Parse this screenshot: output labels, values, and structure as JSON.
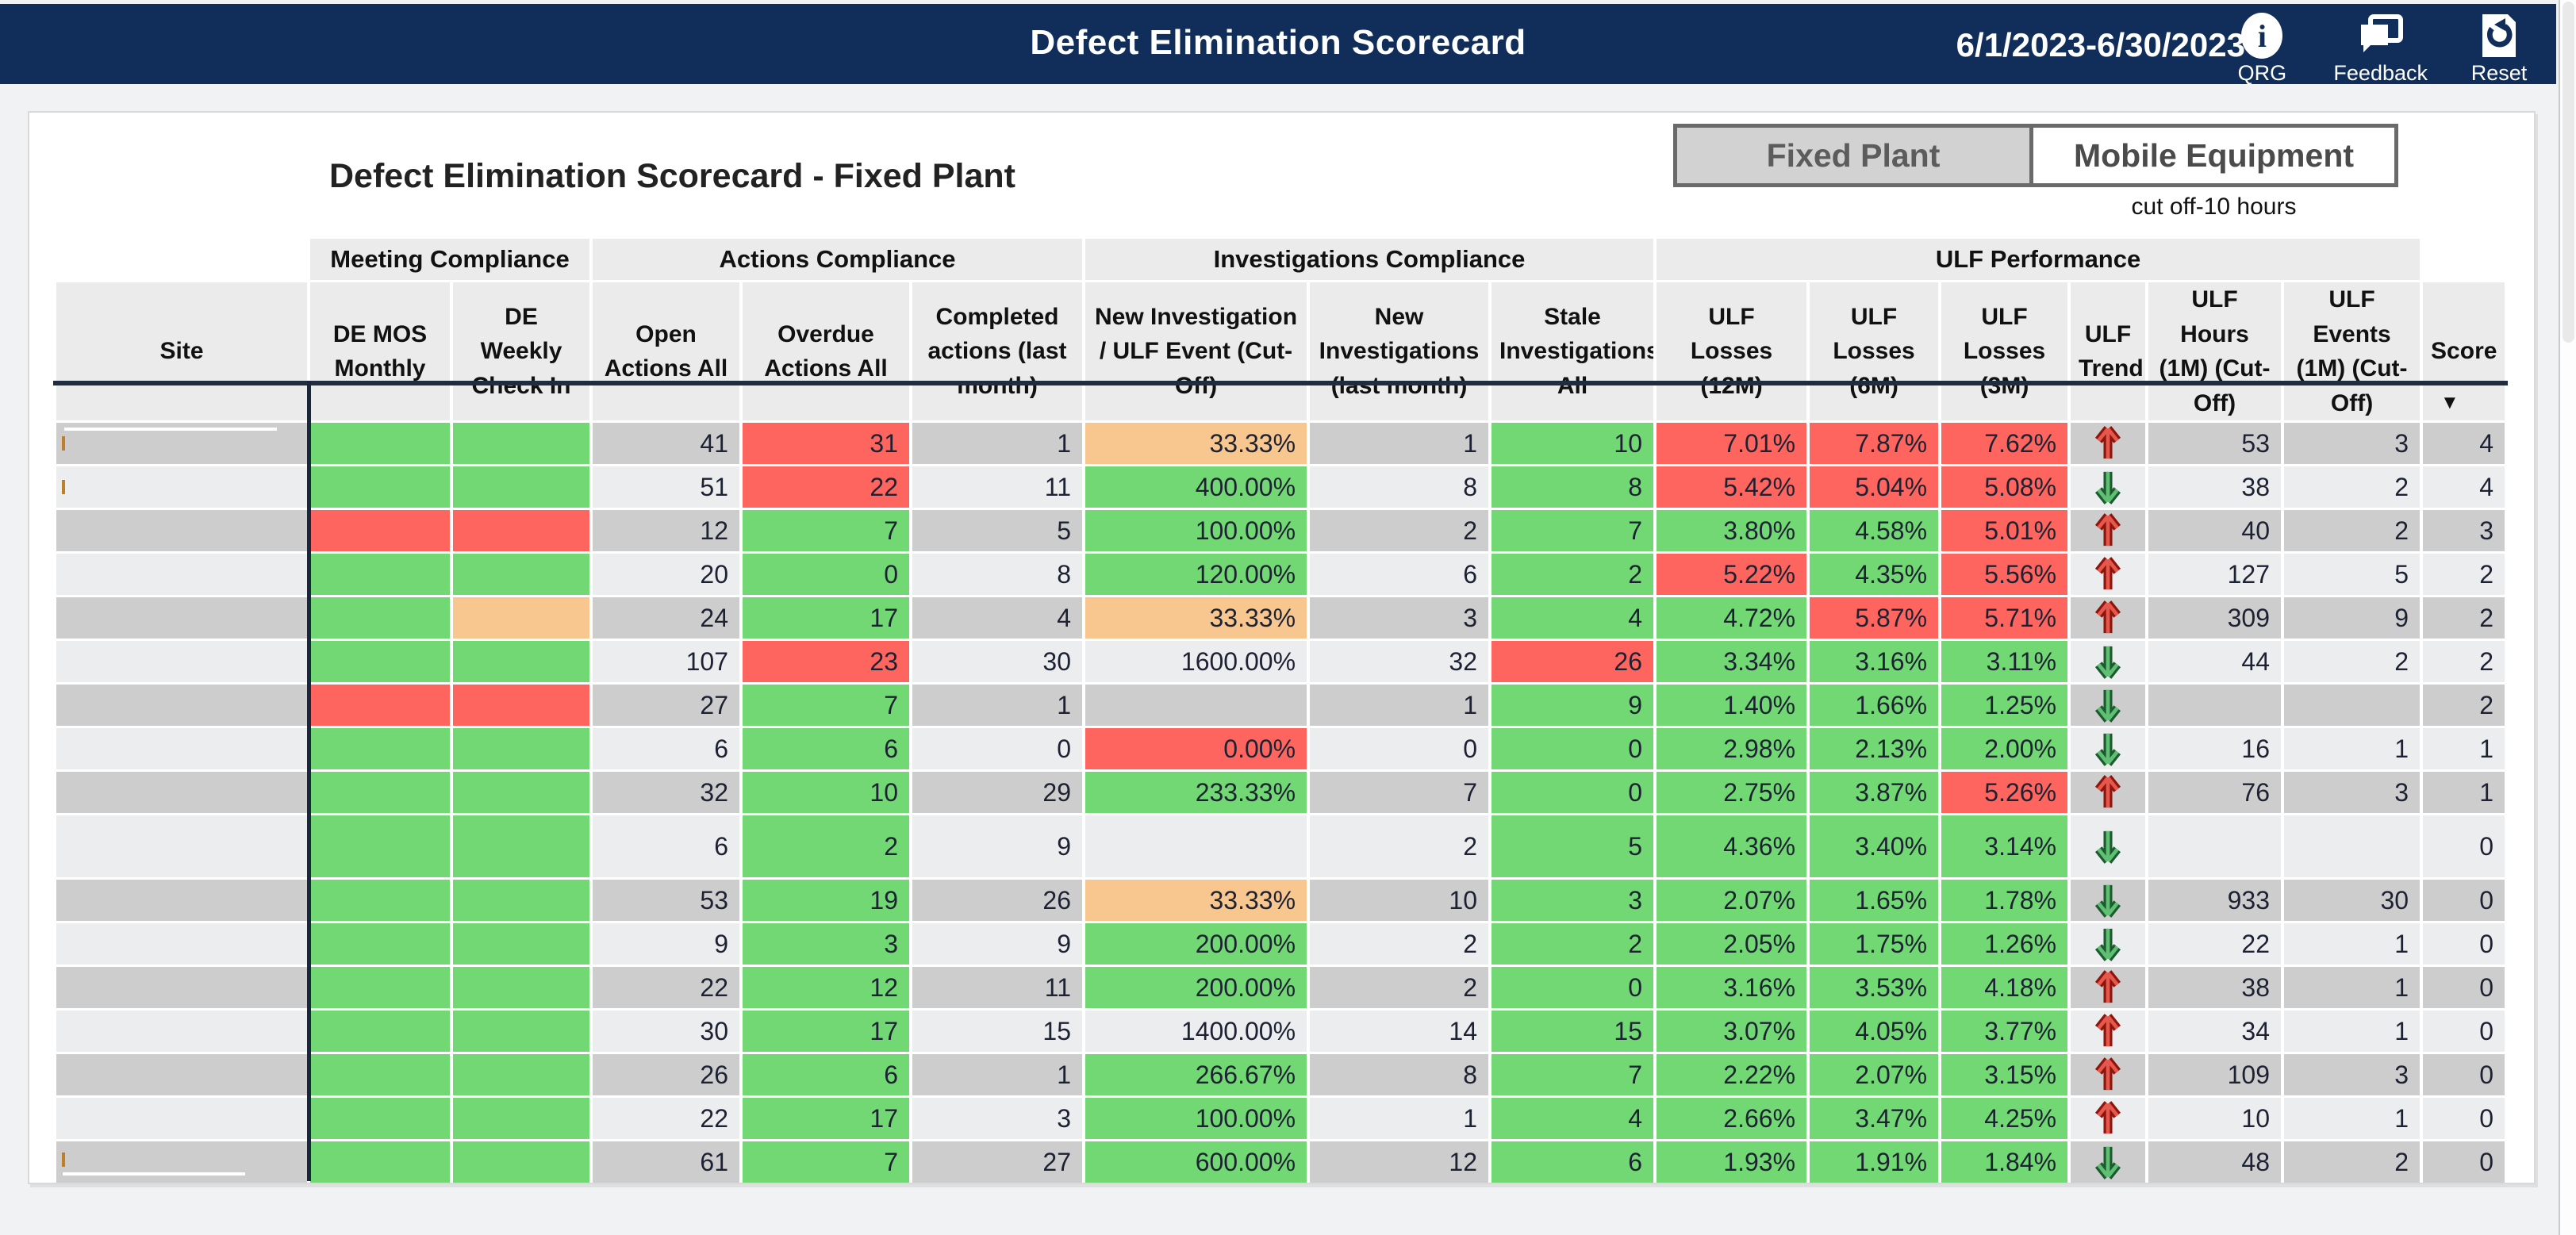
{
  "topbar": {
    "title": "Defect Elimination Scorecard",
    "date_range": "6/1/2023-6/30/2023",
    "buttons": [
      {
        "label": "QRG",
        "icon": "info-icon",
        "glyph": "i"
      },
      {
        "label": "Feedback",
        "icon": "feedback-icon"
      },
      {
        "label": "Reset",
        "icon": "reset-icon"
      }
    ]
  },
  "tabs": {
    "fixed_label": "Fixed Plant",
    "mobile_label": "Mobile Equipment",
    "selected": "Fixed Plant",
    "cutoff_note": "cut off-10 hours"
  },
  "report": {
    "title": "Defect Elimination Scorecard - Fixed Plant"
  },
  "table": {
    "groups": [
      {
        "label": "",
        "span": 1
      },
      {
        "label": "Meeting Compliance",
        "span": 2
      },
      {
        "label": "Actions Compliance",
        "span": 3
      },
      {
        "label": "Investigations Compliance",
        "span": 3
      },
      {
        "label": "ULF Performance",
        "span": 6
      },
      {
        "label": "",
        "span": 1
      }
    ],
    "columns": [
      "Site",
      "DE MOS Monthly",
      "DE Weekly Check In",
      "Open Actions All",
      "Overdue Actions All",
      "Completed actions (last month)",
      "New Investigation / ULF Event (Cut-Off)",
      "New Investigations (last month)",
      "Stale Investigations All",
      "ULF Losses (12M)",
      "ULF Losses (6M)",
      "ULF Losses (3M)",
      "ULF Trend",
      "ULF Hours (1M) (Cut-Off)",
      "ULF Events (1M) (Cut-Off)",
      "Score"
    ],
    "sort_column": "Score",
    "sort_indicator": "▼",
    "rows": [
      {
        "site": "",
        "de_mos": "green",
        "de_weekly": "green",
        "open_actions": "41",
        "overdue_actions": "31",
        "overdue_color": "red",
        "completed_actions": "1",
        "new_investigation_pct": "33.33%",
        "new_investigation_color": "orange",
        "new_investigations": "1",
        "stale_investigations": "10",
        "stale_color": "green",
        "ulf_losses_12m": "7.01%",
        "l12_color": "red",
        "ulf_losses_6m": "7.87%",
        "l6_color": "red",
        "ulf_losses_3m": "7.62%",
        "l3_color": "red",
        "ulf_trend": "up",
        "ulf_hours": "53",
        "ulf_events": "3",
        "score": "4",
        "tall": false,
        "redaction": "top",
        "tick": true
      },
      {
        "site": "",
        "de_mos": "green",
        "de_weekly": "green",
        "open_actions": "51",
        "overdue_actions": "22",
        "overdue_color": "red",
        "completed_actions": "11",
        "new_investigation_pct": "400.00%",
        "new_investigation_color": "green",
        "new_investigations": "8",
        "stale_investigations": "8",
        "stale_color": "green",
        "ulf_losses_12m": "5.42%",
        "l12_color": "red",
        "ulf_losses_6m": "5.04%",
        "l6_color": "red",
        "ulf_losses_3m": "5.08%",
        "l3_color": "red",
        "ulf_trend": "down",
        "ulf_hours": "38",
        "ulf_events": "2",
        "score": "4",
        "tall": false,
        "redaction": null,
        "tick": true
      },
      {
        "site": "",
        "de_mos": "red",
        "de_weekly": "red",
        "open_actions": "12",
        "overdue_actions": "7",
        "overdue_color": "green",
        "completed_actions": "5",
        "new_investigation_pct": "100.00%",
        "new_investigation_color": "green",
        "new_investigations": "2",
        "stale_investigations": "7",
        "stale_color": "green",
        "ulf_losses_12m": "3.80%",
        "l12_color": "green",
        "ulf_losses_6m": "4.58%",
        "l6_color": "green",
        "ulf_losses_3m": "5.01%",
        "l3_color": "red",
        "ulf_trend": "up",
        "ulf_hours": "40",
        "ulf_events": "2",
        "score": "3",
        "tall": false,
        "redaction": null,
        "tick": false
      },
      {
        "site": "",
        "de_mos": "green",
        "de_weekly": "green",
        "open_actions": "20",
        "overdue_actions": "0",
        "overdue_color": "green",
        "completed_actions": "8",
        "new_investigation_pct": "120.00%",
        "new_investigation_color": "green",
        "new_investigations": "6",
        "stale_investigations": "2",
        "stale_color": "green",
        "ulf_losses_12m": "5.22%",
        "l12_color": "red",
        "ulf_losses_6m": "4.35%",
        "l6_color": "green",
        "ulf_losses_3m": "5.56%",
        "l3_color": "red",
        "ulf_trend": "up",
        "ulf_hours": "127",
        "ulf_events": "5",
        "score": "2",
        "tall": false,
        "redaction": null,
        "tick": false
      },
      {
        "site": "",
        "de_mos": "green",
        "de_weekly": "orange",
        "open_actions": "24",
        "overdue_actions": "17",
        "overdue_color": "green",
        "completed_actions": "4",
        "new_investigation_pct": "33.33%",
        "new_investigation_color": "orange",
        "new_investigations": "3",
        "stale_investigations": "4",
        "stale_color": "green",
        "ulf_losses_12m": "4.72%",
        "l12_color": "green",
        "ulf_losses_6m": "5.87%",
        "l6_color": "red",
        "ulf_losses_3m": "5.71%",
        "l3_color": "red",
        "ulf_trend": "up",
        "ulf_hours": "309",
        "ulf_events": "9",
        "score": "2",
        "tall": false,
        "redaction": null,
        "tick": false
      },
      {
        "site": "",
        "de_mos": "green",
        "de_weekly": "green",
        "open_actions": "107",
        "overdue_actions": "23",
        "overdue_color": "red",
        "completed_actions": "30",
        "new_investigation_pct": "1600.00%",
        "new_investigation_color": "none",
        "new_investigations": "32",
        "stale_investigations": "26",
        "stale_color": "red",
        "ulf_losses_12m": "3.34%",
        "l12_color": "green",
        "ulf_losses_6m": "3.16%",
        "l6_color": "green",
        "ulf_losses_3m": "3.11%",
        "l3_color": "green",
        "ulf_trend": "down",
        "ulf_hours": "44",
        "ulf_events": "2",
        "score": "2",
        "tall": false,
        "redaction": null,
        "tick": false
      },
      {
        "site": "",
        "de_mos": "red",
        "de_weekly": "red",
        "open_actions": "27",
        "overdue_actions": "7",
        "overdue_color": "green",
        "completed_actions": "1",
        "new_investigation_pct": "",
        "new_investigation_color": "none",
        "new_investigations": "1",
        "stale_investigations": "9",
        "stale_color": "green",
        "ulf_losses_12m": "1.40%",
        "l12_color": "green",
        "ulf_losses_6m": "1.66%",
        "l6_color": "green",
        "ulf_losses_3m": "1.25%",
        "l3_color": "green",
        "ulf_trend": "down",
        "ulf_hours": "",
        "ulf_events": "",
        "score": "2",
        "tall": false,
        "redaction": null,
        "tick": false
      },
      {
        "site": "",
        "de_mos": "green",
        "de_weekly": "green",
        "open_actions": "6",
        "overdue_actions": "6",
        "overdue_color": "green",
        "completed_actions": "0",
        "new_investigation_pct": "0.00%",
        "new_investigation_color": "red",
        "new_investigations": "0",
        "stale_investigations": "0",
        "stale_color": "green",
        "ulf_losses_12m": "2.98%",
        "l12_color": "green",
        "ulf_losses_6m": "2.13%",
        "l6_color": "green",
        "ulf_losses_3m": "2.00%",
        "l3_color": "green",
        "ulf_trend": "down",
        "ulf_hours": "16",
        "ulf_events": "1",
        "score": "1",
        "tall": false,
        "redaction": null,
        "tick": false
      },
      {
        "site": "",
        "de_mos": "green",
        "de_weekly": "green",
        "open_actions": "32",
        "overdue_actions": "10",
        "overdue_color": "green",
        "completed_actions": "29",
        "new_investigation_pct": "233.33%",
        "new_investigation_color": "green",
        "new_investigations": "7",
        "stale_investigations": "0",
        "stale_color": "green",
        "ulf_losses_12m": "2.75%",
        "l12_color": "green",
        "ulf_losses_6m": "3.87%",
        "l6_color": "green",
        "ulf_losses_3m": "5.26%",
        "l3_color": "red",
        "ulf_trend": "up",
        "ulf_hours": "76",
        "ulf_events": "3",
        "score": "1",
        "tall": false,
        "redaction": null,
        "tick": false
      },
      {
        "site": "",
        "de_mos": "green",
        "de_weekly": "green",
        "open_actions": "6",
        "overdue_actions": "2",
        "overdue_color": "green",
        "completed_actions": "9",
        "new_investigation_pct": "",
        "new_investigation_color": "none",
        "new_investigations": "2",
        "stale_investigations": "5",
        "stale_color": "green",
        "ulf_losses_12m": "4.36%",
        "l12_color": "green",
        "ulf_losses_6m": "3.40%",
        "l6_color": "green",
        "ulf_losses_3m": "3.14%",
        "l3_color": "green",
        "ulf_trend": "down",
        "ulf_hours": "",
        "ulf_events": "",
        "score": "0",
        "tall": true,
        "redaction": null,
        "tick": false
      },
      {
        "site": "",
        "de_mos": "green",
        "de_weekly": "green",
        "open_actions": "53",
        "overdue_actions": "19",
        "overdue_color": "green",
        "completed_actions": "26",
        "new_investigation_pct": "33.33%",
        "new_investigation_color": "orange",
        "new_investigations": "10",
        "stale_investigations": "3",
        "stale_color": "green",
        "ulf_losses_12m": "2.07%",
        "l12_color": "green",
        "ulf_losses_6m": "1.65%",
        "l6_color": "green",
        "ulf_losses_3m": "1.78%",
        "l3_color": "green",
        "ulf_trend": "down",
        "ulf_hours": "933",
        "ulf_events": "30",
        "score": "0",
        "tall": false,
        "redaction": null,
        "tick": false
      },
      {
        "site": "",
        "de_mos": "green",
        "de_weekly": "green",
        "open_actions": "9",
        "overdue_actions": "3",
        "overdue_color": "green",
        "completed_actions": "9",
        "new_investigation_pct": "200.00%",
        "new_investigation_color": "green",
        "new_investigations": "2",
        "stale_investigations": "2",
        "stale_color": "green",
        "ulf_losses_12m": "2.05%",
        "l12_color": "green",
        "ulf_losses_6m": "1.75%",
        "l6_color": "green",
        "ulf_losses_3m": "1.26%",
        "l3_color": "green",
        "ulf_trend": "down",
        "ulf_hours": "22",
        "ulf_events": "1",
        "score": "0",
        "tall": false,
        "redaction": null,
        "tick": false
      },
      {
        "site": "",
        "de_mos": "green",
        "de_weekly": "green",
        "open_actions": "22",
        "overdue_actions": "12",
        "overdue_color": "green",
        "completed_actions": "11",
        "new_investigation_pct": "200.00%",
        "new_investigation_color": "green",
        "new_investigations": "2",
        "stale_investigations": "0",
        "stale_color": "green",
        "ulf_losses_12m": "3.16%",
        "l12_color": "green",
        "ulf_losses_6m": "3.53%",
        "l6_color": "green",
        "ulf_losses_3m": "4.18%",
        "l3_color": "green",
        "ulf_trend": "up",
        "ulf_hours": "38",
        "ulf_events": "1",
        "score": "0",
        "tall": false,
        "redaction": null,
        "tick": false
      },
      {
        "site": "",
        "de_mos": "green",
        "de_weekly": "green",
        "open_actions": "30",
        "overdue_actions": "17",
        "overdue_color": "green",
        "completed_actions": "15",
        "new_investigation_pct": "1400.00%",
        "new_investigation_color": "none",
        "new_investigations": "14",
        "stale_investigations": "15",
        "stale_color": "green",
        "ulf_losses_12m": "3.07%",
        "l12_color": "green",
        "ulf_losses_6m": "4.05%",
        "l6_color": "green",
        "ulf_losses_3m": "3.77%",
        "l3_color": "green",
        "ulf_trend": "up",
        "ulf_hours": "34",
        "ulf_events": "1",
        "score": "0",
        "tall": false,
        "redaction": null,
        "tick": false
      },
      {
        "site": "",
        "de_mos": "green",
        "de_weekly": "green",
        "open_actions": "26",
        "overdue_actions": "6",
        "overdue_color": "green",
        "completed_actions": "1",
        "new_investigation_pct": "266.67%",
        "new_investigation_color": "green",
        "new_investigations": "8",
        "stale_investigations": "7",
        "stale_color": "green",
        "ulf_losses_12m": "2.22%",
        "l12_color": "green",
        "ulf_losses_6m": "2.07%",
        "l6_color": "green",
        "ulf_losses_3m": "3.15%",
        "l3_color": "green",
        "ulf_trend": "up",
        "ulf_hours": "109",
        "ulf_events": "3",
        "score": "0",
        "tall": false,
        "redaction": null,
        "tick": false
      },
      {
        "site": "",
        "de_mos": "green",
        "de_weekly": "green",
        "open_actions": "22",
        "overdue_actions": "17",
        "overdue_color": "green",
        "completed_actions": "3",
        "new_investigation_pct": "100.00%",
        "new_investigation_color": "green",
        "new_investigations": "1",
        "stale_investigations": "4",
        "stale_color": "green",
        "ulf_losses_12m": "2.66%",
        "l12_color": "green",
        "ulf_losses_6m": "3.47%",
        "l6_color": "green",
        "ulf_losses_3m": "4.25%",
        "l3_color": "green",
        "ulf_trend": "up",
        "ulf_hours": "10",
        "ulf_events": "1",
        "score": "0",
        "tall": false,
        "redaction": null,
        "tick": false
      },
      {
        "site": "",
        "de_mos": "green",
        "de_weekly": "green",
        "open_actions": "61",
        "overdue_actions": "7",
        "overdue_color": "green",
        "completed_actions": "27",
        "new_investigation_pct": "600.00%",
        "new_investigation_color": "green",
        "new_investigations": "12",
        "stale_investigations": "6",
        "stale_color": "green",
        "ulf_losses_12m": "1.93%",
        "l12_color": "green",
        "ulf_losses_6m": "1.91%",
        "l6_color": "green",
        "ulf_losses_3m": "1.84%",
        "l3_color": "green",
        "ulf_trend": "down",
        "ulf_hours": "48",
        "ulf_events": "2",
        "score": "0",
        "tall": false,
        "redaction": "bottom",
        "tick": true
      }
    ]
  },
  "colors": {
    "topbar_bg": "#112e5b",
    "cell_green": "#72d873",
    "cell_red": "#fe655f",
    "cell_orange": "#f8c68f",
    "band_dark": "#cdcdcd",
    "band_light": "#ebedee",
    "header_bg": "#ebebeb",
    "trend_up": "#c0392b",
    "trend_down": "#2e7d46"
  }
}
